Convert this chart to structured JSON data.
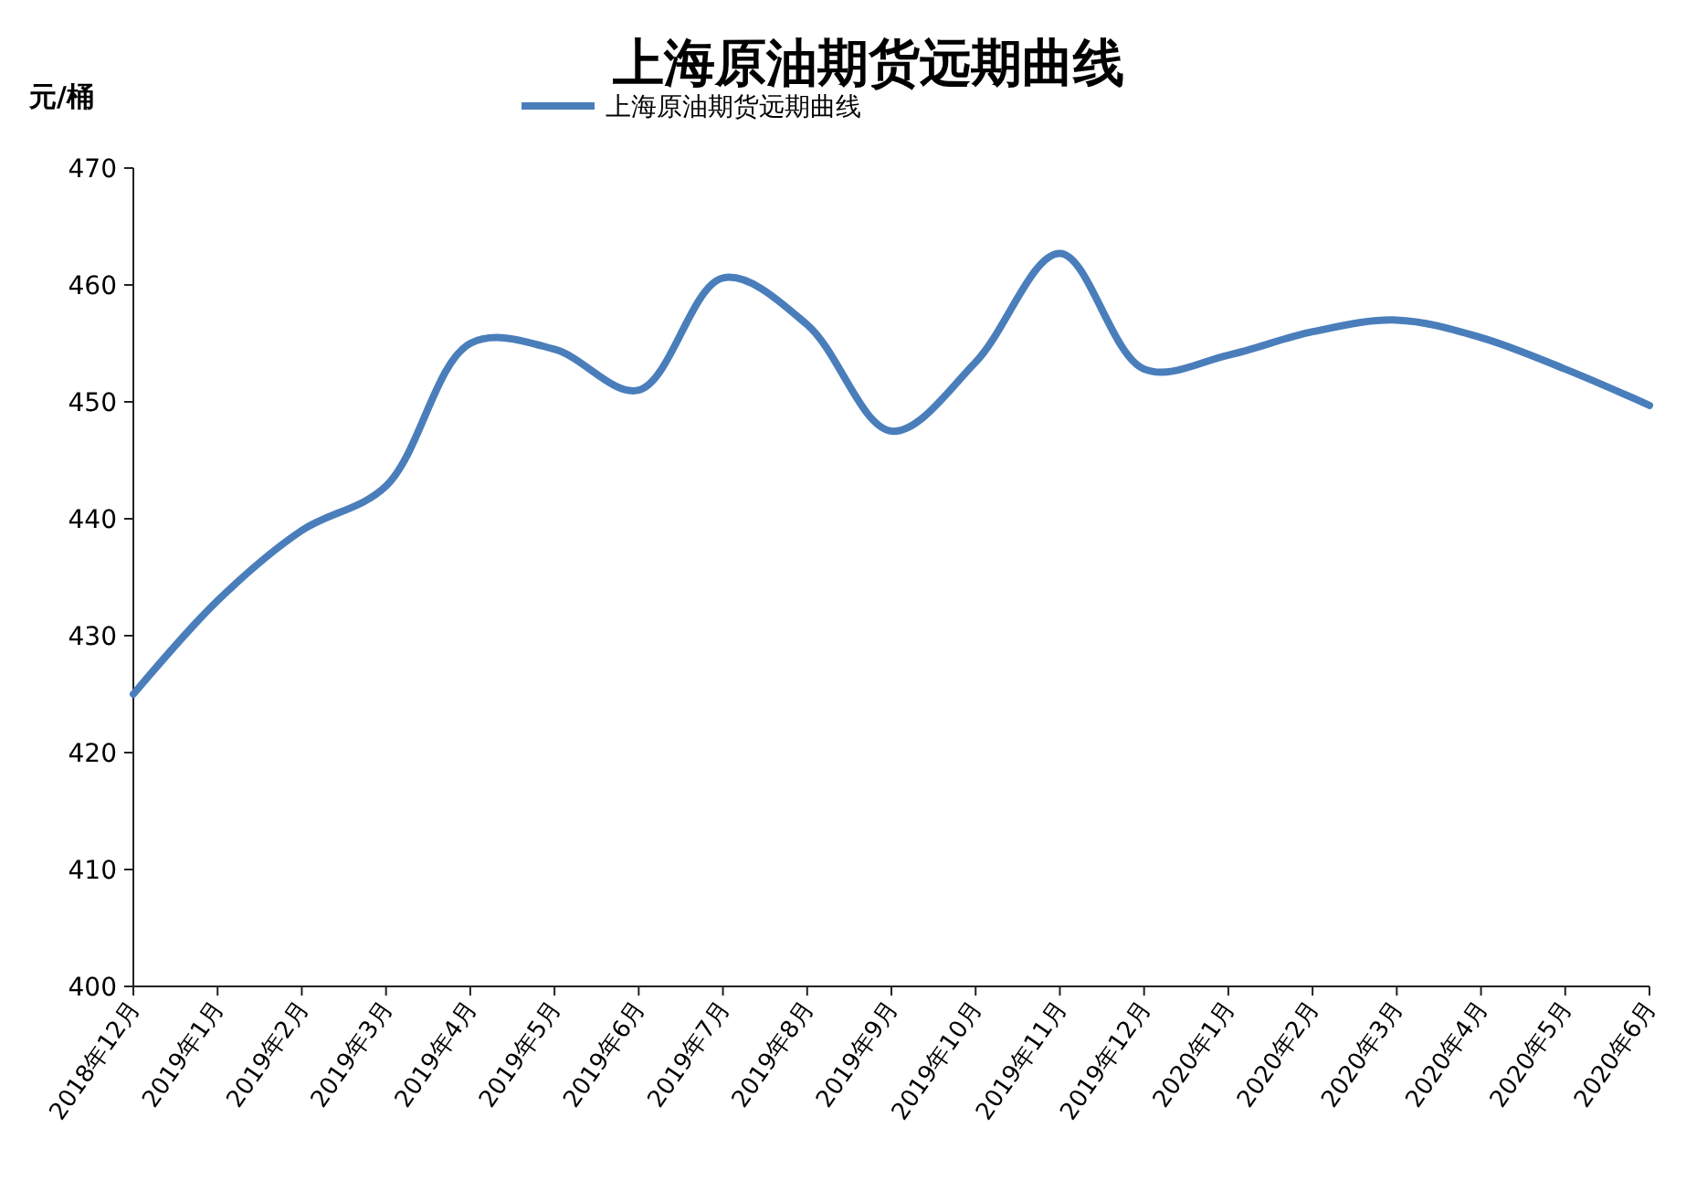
{
  "chart_data": {
    "type": "line",
    "title": "上海原油期货远期曲线",
    "ylabel": "元/桶",
    "categories": [
      "2018年12月",
      "2019年1月",
      "2019年2月",
      "2019年3月",
      "2019年4月",
      "2019年5月",
      "2019年6月",
      "2019年7月",
      "2019年8月",
      "2019年9月",
      "2019年10月",
      "2019年11月",
      "2019年12月",
      "2020年1月",
      "2020年2月",
      "2020年3月",
      "2020年4月",
      "2020年5月",
      "2020年6月"
    ],
    "series": [
      {
        "name": "上海原油期货远期曲线",
        "color": "#4a7ebb",
        "values": [
          425,
          433,
          439,
          442.8,
          455,
          454.5,
          451,
          460.6,
          456.6,
          447.5,
          453.4,
          462.7,
          452.8,
          454,
          456,
          457,
          455.5,
          452.8,
          449.7
        ]
      }
    ],
    "ylim": [
      400,
      470
    ],
    "yticks": [
      400,
      410,
      420,
      430,
      440,
      450,
      460,
      470
    ],
    "grid": false,
    "legend": "top",
    "marker": "none",
    "line_style": "solid"
  }
}
